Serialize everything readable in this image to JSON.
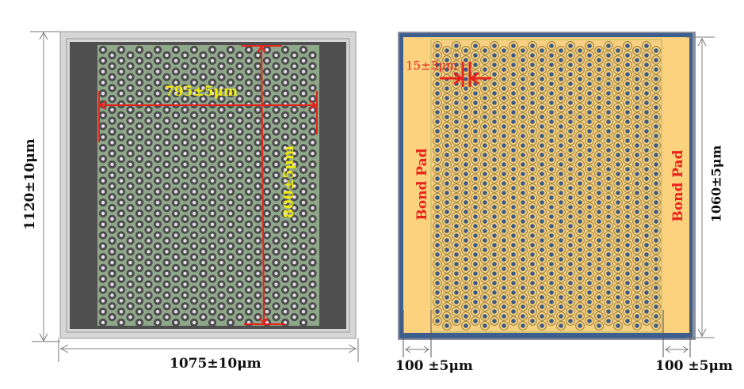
{
  "left_chip": {
    "width_label": "1075±10μm",
    "height_label": "1120±10μm",
    "array_width_label": "795±5μm",
    "array_height_label": "800±5μm",
    "colors": {
      "outer_frame": "#d4d4d4",
      "frame_line": "#9a9a9a",
      "dark_region": "#4f4f4f",
      "array_bg": "#8fa88a",
      "hole_ring": "#4d4d4d",
      "hole_center": "#e8e0ee",
      "dimension_red": "#e8231c",
      "label_yellow": "#f2ea12"
    }
  },
  "right_chip": {
    "height_label": "1060±5μm",
    "pitch_label": "15±3μm",
    "bond_pad_left_label": "Bond Pad",
    "bond_pad_right_label": "Bond Pad",
    "margin_left_label": "100 ±5μm",
    "margin_right_label": "100 ±5μm",
    "colors": {
      "border": "#3d5f8f",
      "border_shadow": "#8a90a0",
      "pad_bg": "#fdd27f",
      "hole_ring": "#8a7a3a",
      "hole_center": "#3a5b86",
      "label_red": "#e8231c"
    }
  }
}
